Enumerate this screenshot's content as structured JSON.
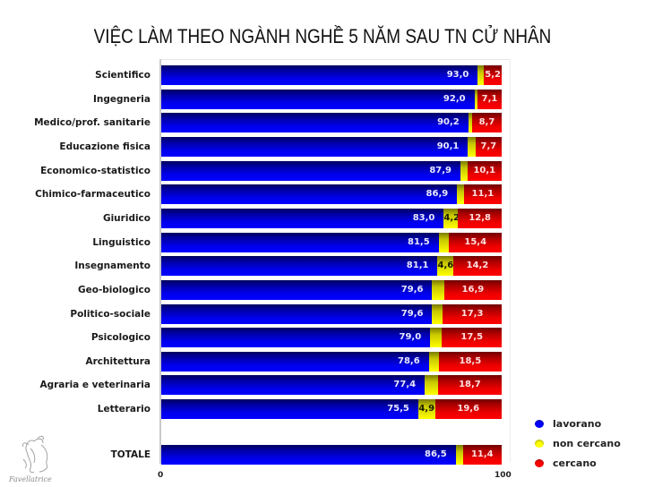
{
  "title": "VIỆC LÀM THEO NGÀNH NGHỀ 5 NĂM SAU TN CỬ NHÂN",
  "colors": {
    "lavorano": "#0000ff",
    "non_cercano": "#ffff00",
    "cercano": "#ff0000"
  },
  "legend": [
    {
      "label": "lavorano",
      "color": "#0000ff"
    },
    {
      "label": "non cercano",
      "color": "#ffff00"
    },
    {
      "label": "cercano",
      "color": "#ff0000"
    }
  ],
  "axis": {
    "min_label": "0",
    "max_label": "100"
  },
  "logo_text": "Favellatrice",
  "rows": [
    {
      "label": "Scientifico",
      "lavorano": 93.0,
      "non_cercano": 1.8,
      "cercano": 5.2,
      "lav_text": "93,0",
      "non_text": "",
      "cer_text": "5,2"
    },
    {
      "label": "Ingegneria",
      "lavorano": 92.0,
      "non_cercano": 0.9,
      "cercano": 7.1,
      "lav_text": "92,0",
      "non_text": "",
      "cer_text": "7,1"
    },
    {
      "label": "Medico/prof. sanitarie",
      "lavorano": 90.2,
      "non_cercano": 1.1,
      "cercano": 8.7,
      "lav_text": "90,2",
      "non_text": "",
      "cer_text": "8,7"
    },
    {
      "label": "Educazione fisica",
      "lavorano": 90.1,
      "non_cercano": 2.2,
      "cercano": 7.7,
      "lav_text": "90,1",
      "non_text": "",
      "cer_text": "7,7"
    },
    {
      "label": "Economico-statistico",
      "lavorano": 87.9,
      "non_cercano": 2.0,
      "cercano": 10.1,
      "lav_text": "87,9",
      "non_text": "",
      "cer_text": "10,1"
    },
    {
      "label": "Chimico-farmaceutico",
      "lavorano": 86.9,
      "non_cercano": 2.0,
      "cercano": 11.1,
      "lav_text": "86,9",
      "non_text": "",
      "cer_text": "11,1"
    },
    {
      "label": "Giuridico",
      "lavorano": 83.0,
      "non_cercano": 4.2,
      "cercano": 12.8,
      "lav_text": "83,0",
      "non_text": "4,2",
      "cer_text": "12,8"
    },
    {
      "label": "Linguistico",
      "lavorano": 81.5,
      "non_cercano": 3.1,
      "cercano": 15.4,
      "lav_text": "81,5",
      "non_text": "",
      "cer_text": "15,4"
    },
    {
      "label": "Insegnamento",
      "lavorano": 81.1,
      "non_cercano": 4.6,
      "cercano": 14.2,
      "lav_text": "81,1",
      "non_text": "4,6",
      "cer_text": "14,2"
    },
    {
      "label": "Geo-biologico",
      "lavorano": 79.6,
      "non_cercano": 3.5,
      "cercano": 16.9,
      "lav_text": "79,6",
      "non_text": "",
      "cer_text": "16,9"
    },
    {
      "label": "Politico-sociale",
      "lavorano": 79.6,
      "non_cercano": 3.1,
      "cercano": 17.3,
      "lav_text": "79,6",
      "non_text": "",
      "cer_text": "17,3"
    },
    {
      "label": "Psicologico",
      "lavorano": 79.0,
      "non_cercano": 3.5,
      "cercano": 17.5,
      "lav_text": "79,0",
      "non_text": "",
      "cer_text": "17,5"
    },
    {
      "label": "Architettura",
      "lavorano": 78.6,
      "non_cercano": 2.9,
      "cercano": 18.5,
      "lav_text": "78,6",
      "non_text": "",
      "cer_text": "18,5"
    },
    {
      "label": "Agraria e veterinaria",
      "lavorano": 77.4,
      "non_cercano": 3.9,
      "cercano": 18.7,
      "lav_text": "77,4",
      "non_text": "",
      "cer_text": "18,7"
    },
    {
      "label": "Letterario",
      "lavorano": 75.5,
      "non_cercano": 4.9,
      "cercano": 19.6,
      "lav_text": "75,5",
      "non_text": "4,9",
      "cer_text": "19,6"
    }
  ],
  "total": {
    "label": "TOTALE",
    "lavorano": 86.5,
    "non_cercano": 2.1,
    "cercano": 11.4,
    "lav_text": "86,5",
    "non_text": "",
    "cer_text": "11,4"
  },
  "chart_data": {
    "type": "bar",
    "orientation": "horizontal",
    "stacked": true,
    "title": "VIỆC LÀM THEO NGÀNH NGHỀ 5 NĂM SAU TN CỬ NHÂN",
    "xlabel": "",
    "ylabel": "",
    "xlim": [
      0,
      100
    ],
    "x_tick_labels": [
      "0",
      "100"
    ],
    "grid": false,
    "legend_position": "bottom-right",
    "categories": [
      "Scientifico",
      "Ingegneria",
      "Medico/prof. sanitarie",
      "Educazione fisica",
      "Economico-statistico",
      "Chimico-farmaceutico",
      "Giuridico",
      "Linguistico",
      "Insegnamento",
      "Geo-biologico",
      "Politico-sociale",
      "Psicologico",
      "Architettura",
      "Agraria e veterinaria",
      "Letterario",
      "TOTALE"
    ],
    "series": [
      {
        "name": "lavorano",
        "color": "#0000ff",
        "values": [
          93.0,
          92.0,
          90.2,
          90.1,
          87.9,
          86.9,
          83.0,
          81.5,
          81.1,
          79.6,
          79.6,
          79.0,
          78.6,
          77.4,
          75.5,
          86.5
        ]
      },
      {
        "name": "non cercano",
        "color": "#ffff00",
        "values": [
          1.8,
          0.9,
          1.1,
          2.2,
          2.0,
          2.0,
          4.2,
          3.1,
          4.6,
          3.5,
          3.1,
          3.5,
          2.9,
          3.9,
          4.9,
          2.1
        ]
      },
      {
        "name": "cercano",
        "color": "#ff0000",
        "values": [
          5.2,
          7.1,
          8.7,
          7.7,
          10.1,
          11.1,
          12.8,
          15.4,
          14.2,
          16.9,
          17.3,
          17.5,
          18.5,
          18.7,
          19.6,
          11.4
        ]
      }
    ]
  }
}
